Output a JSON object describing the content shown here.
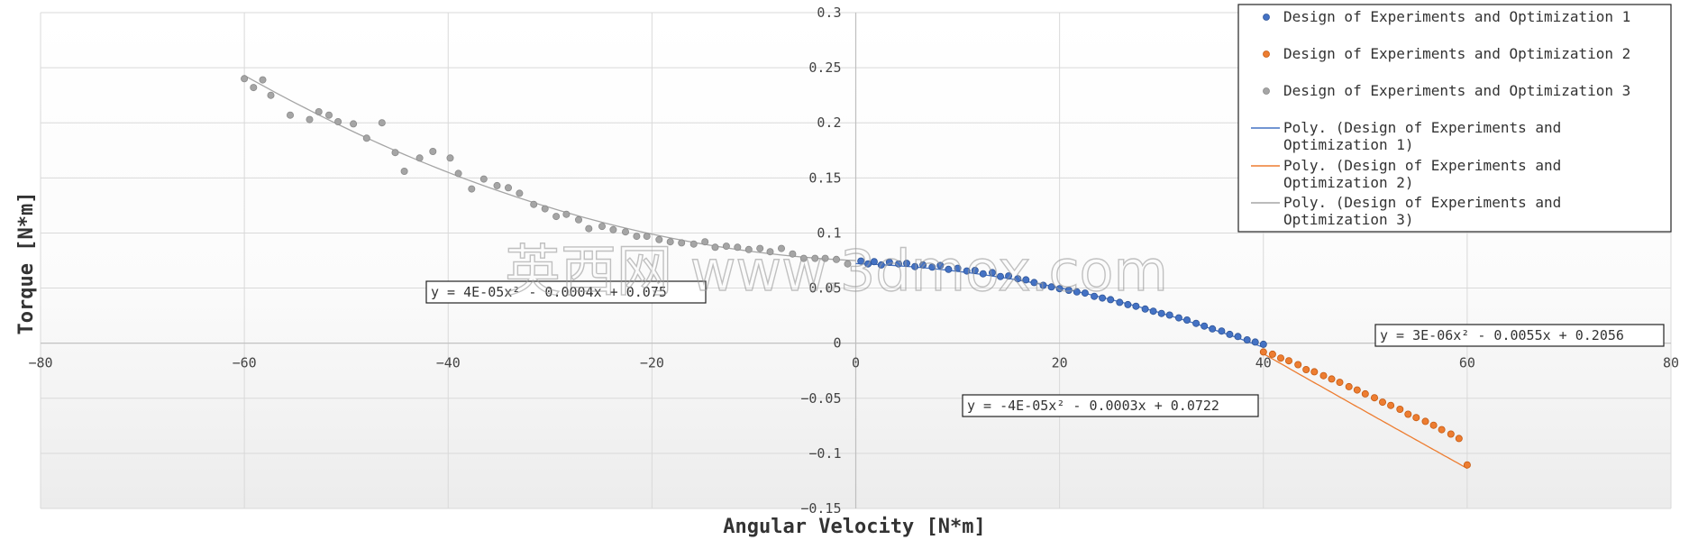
{
  "chart_data": {
    "type": "scatter",
    "title": "",
    "xlabel": "Angular Velocity [N*m]",
    "ylabel": "Torque [N*m]",
    "xlim": [
      -80,
      80
    ],
    "ylim": [
      -0.15,
      0.3
    ],
    "x_ticks": [
      "−80",
      "−60",
      "−40",
      "−20",
      "0",
      "20",
      "40",
      "60",
      "80"
    ],
    "y_ticks": [
      "0.3",
      "0.25",
      "0.2",
      "0.15",
      "0.1",
      "0.05",
      "0",
      "−0.05",
      "−0.1",
      "−0.15"
    ],
    "grid": true,
    "legend_position": "top-right",
    "series": [
      {
        "name": "Design of Experiments and Optimization 1",
        "color": "#4472C4",
        "points": [
          [
            0.5,
            0.0745
          ],
          [
            1.2,
            0.072
          ],
          [
            1.8,
            0.074
          ],
          [
            2.5,
            0.071
          ],
          [
            3.3,
            0.0735
          ],
          [
            4.2,
            0.072
          ],
          [
            5.0,
            0.0725
          ],
          [
            5.8,
            0.0695
          ],
          [
            6.6,
            0.071
          ],
          [
            7.5,
            0.069
          ],
          [
            8.3,
            0.0705
          ],
          [
            9.1,
            0.067
          ],
          [
            10.0,
            0.068
          ],
          [
            10.9,
            0.0655
          ],
          [
            11.7,
            0.066
          ],
          [
            12.5,
            0.063
          ],
          [
            13.4,
            0.064
          ],
          [
            14.2,
            0.0605
          ],
          [
            15.0,
            0.061
          ],
          [
            15.9,
            0.0585
          ],
          [
            16.7,
            0.0575
          ],
          [
            17.5,
            0.055
          ],
          [
            18.4,
            0.0525
          ],
          [
            19.2,
            0.051
          ],
          [
            20.0,
            0.0495
          ],
          [
            20.9,
            0.048
          ],
          [
            21.7,
            0.0465
          ],
          [
            22.5,
            0.0455
          ],
          [
            23.4,
            0.0425
          ],
          [
            24.2,
            0.041
          ],
          [
            25.0,
            0.0395
          ],
          [
            25.9,
            0.037
          ],
          [
            26.7,
            0.035
          ],
          [
            27.5,
            0.0335
          ],
          [
            28.4,
            0.031
          ],
          [
            29.2,
            0.029
          ],
          [
            30.0,
            0.027
          ],
          [
            30.8,
            0.0255
          ],
          [
            31.7,
            0.023
          ],
          [
            32.5,
            0.021
          ],
          [
            33.4,
            0.018
          ],
          [
            34.2,
            0.0155
          ],
          [
            35.0,
            0.013
          ],
          [
            35.9,
            0.011
          ],
          [
            36.7,
            0.008
          ],
          [
            37.5,
            0.006
          ],
          [
            38.4,
            0.003
          ],
          [
            39.2,
            0.001
          ],
          [
            40.0,
            -0.001
          ]
        ]
      },
      {
        "name": "Design of Experiments and Optimization 2",
        "color": "#ED7D31",
        "points": [
          [
            40.0,
            -0.008
          ],
          [
            40.9,
            -0.01
          ],
          [
            41.7,
            -0.0135
          ],
          [
            42.5,
            -0.016
          ],
          [
            43.4,
            -0.0195
          ],
          [
            44.2,
            -0.024
          ],
          [
            45.0,
            -0.026
          ],
          [
            45.9,
            -0.0295
          ],
          [
            46.7,
            -0.0325
          ],
          [
            47.5,
            -0.0355
          ],
          [
            48.4,
            -0.0395
          ],
          [
            49.2,
            -0.0425
          ],
          [
            50.0,
            -0.046
          ],
          [
            50.9,
            -0.0495
          ],
          [
            51.7,
            -0.0535
          ],
          [
            52.5,
            -0.0565
          ],
          [
            53.4,
            -0.06
          ],
          [
            54.2,
            -0.0645
          ],
          [
            55.0,
            -0.0675
          ],
          [
            55.9,
            -0.071
          ],
          [
            56.7,
            -0.0745
          ],
          [
            57.5,
            -0.0785
          ],
          [
            58.4,
            -0.0825
          ],
          [
            59.2,
            -0.0865
          ],
          [
            60.0,
            -0.1105
          ]
        ]
      },
      {
        "name": "Design of Experiments and Optimization 3",
        "color": "#A5A5A5",
        "points": [
          [
            -60.0,
            0.24
          ],
          [
            -59.1,
            0.232
          ],
          [
            -58.2,
            0.239
          ],
          [
            -57.4,
            0.225
          ],
          [
            -55.5,
            0.207
          ],
          [
            -53.6,
            0.203
          ],
          [
            -52.7,
            0.21
          ],
          [
            -51.7,
            0.207
          ],
          [
            -50.8,
            0.201
          ],
          [
            -49.3,
            0.199
          ],
          [
            -48.0,
            0.186
          ],
          [
            -46.5,
            0.2
          ],
          [
            -45.2,
            0.173
          ],
          [
            -44.3,
            0.156
          ],
          [
            -42.8,
            0.168
          ],
          [
            -41.5,
            0.174
          ],
          [
            -39.8,
            0.168
          ],
          [
            -39.0,
            0.154
          ],
          [
            -37.7,
            0.14
          ],
          [
            -36.5,
            0.149
          ],
          [
            -35.2,
            0.143
          ],
          [
            -34.1,
            0.141
          ],
          [
            -33.0,
            0.136
          ],
          [
            -31.6,
            0.126
          ],
          [
            -30.5,
            0.122
          ],
          [
            -29.4,
            0.115
          ],
          [
            -28.4,
            0.117
          ],
          [
            -27.2,
            0.112
          ],
          [
            -26.2,
            0.104
          ],
          [
            -24.9,
            0.106
          ],
          [
            -23.8,
            0.103
          ],
          [
            -22.6,
            0.101
          ],
          [
            -21.5,
            0.097
          ],
          [
            -20.5,
            0.097
          ],
          [
            -19.3,
            0.094
          ],
          [
            -18.2,
            0.092
          ],
          [
            -17.1,
            0.091
          ],
          [
            -15.9,
            0.09
          ],
          [
            -14.8,
            0.092
          ],
          [
            -13.8,
            0.087
          ],
          [
            -12.7,
            0.088
          ],
          [
            -11.6,
            0.087
          ],
          [
            -10.5,
            0.085
          ],
          [
            -9.4,
            0.086
          ],
          [
            -8.4,
            0.083
          ],
          [
            -7.3,
            0.086
          ],
          [
            -6.2,
            0.081
          ],
          [
            -5.1,
            0.077
          ],
          [
            -4.0,
            0.077
          ],
          [
            -3.0,
            0.077
          ],
          [
            -1.9,
            0.076
          ],
          [
            -0.8,
            0.072
          ]
        ]
      }
    ],
    "trendlines": [
      {
        "name": "Poly. (Design of Experiments and Optimization 1)",
        "color": "#4472C4",
        "equation": "y = -4E-05x² - 0.0003x + 0.0722",
        "coefficients": [
          -4e-05,
          -0.0003,
          0.0722
        ],
        "x_range": [
          0,
          40
        ]
      },
      {
        "name": "Poly. (Design of Experiments and Optimization 2)",
        "color": "#ED7D31",
        "equation": "y = 3E-06x² - 0.0055x + 0.2056",
        "coefficients": [
          3e-06,
          -0.0055,
          0.2056
        ],
        "x_range": [
          40,
          60
        ]
      },
      {
        "name": "Poly. (Design of Experiments and Optimization 3)",
        "color": "#A5A5A5",
        "equation": "y = 4E-05x² - 0.0004x + 0.075",
        "coefficients": [
          4e-05,
          -0.0004,
          0.075
        ],
        "x_range": [
          -60,
          0
        ]
      }
    ],
    "legend": [
      {
        "label": "Design of Experiments and Optimization 1",
        "kind": "marker",
        "color": "#4472C4"
      },
      {
        "label": "Design of Experiments and Optimization 2",
        "kind": "marker",
        "color": "#ED7D31"
      },
      {
        "label": "Design of Experiments and Optimization 3",
        "kind": "marker",
        "color": "#A5A5A5"
      },
      {
        "label": "Poly. (Design of Experiments and Optimization 1)",
        "kind": "line",
        "color": "#4472C4"
      },
      {
        "label": "Poly. (Design of Experiments and Optimization 2)",
        "kind": "line",
        "color": "#ED7D31"
      },
      {
        "label": "Poly. (Design of Experiments and Optimization 3)",
        "kind": "line",
        "color": "#A5A5A5"
      }
    ]
  },
  "watermark": "英西网 www.3dmox.com"
}
